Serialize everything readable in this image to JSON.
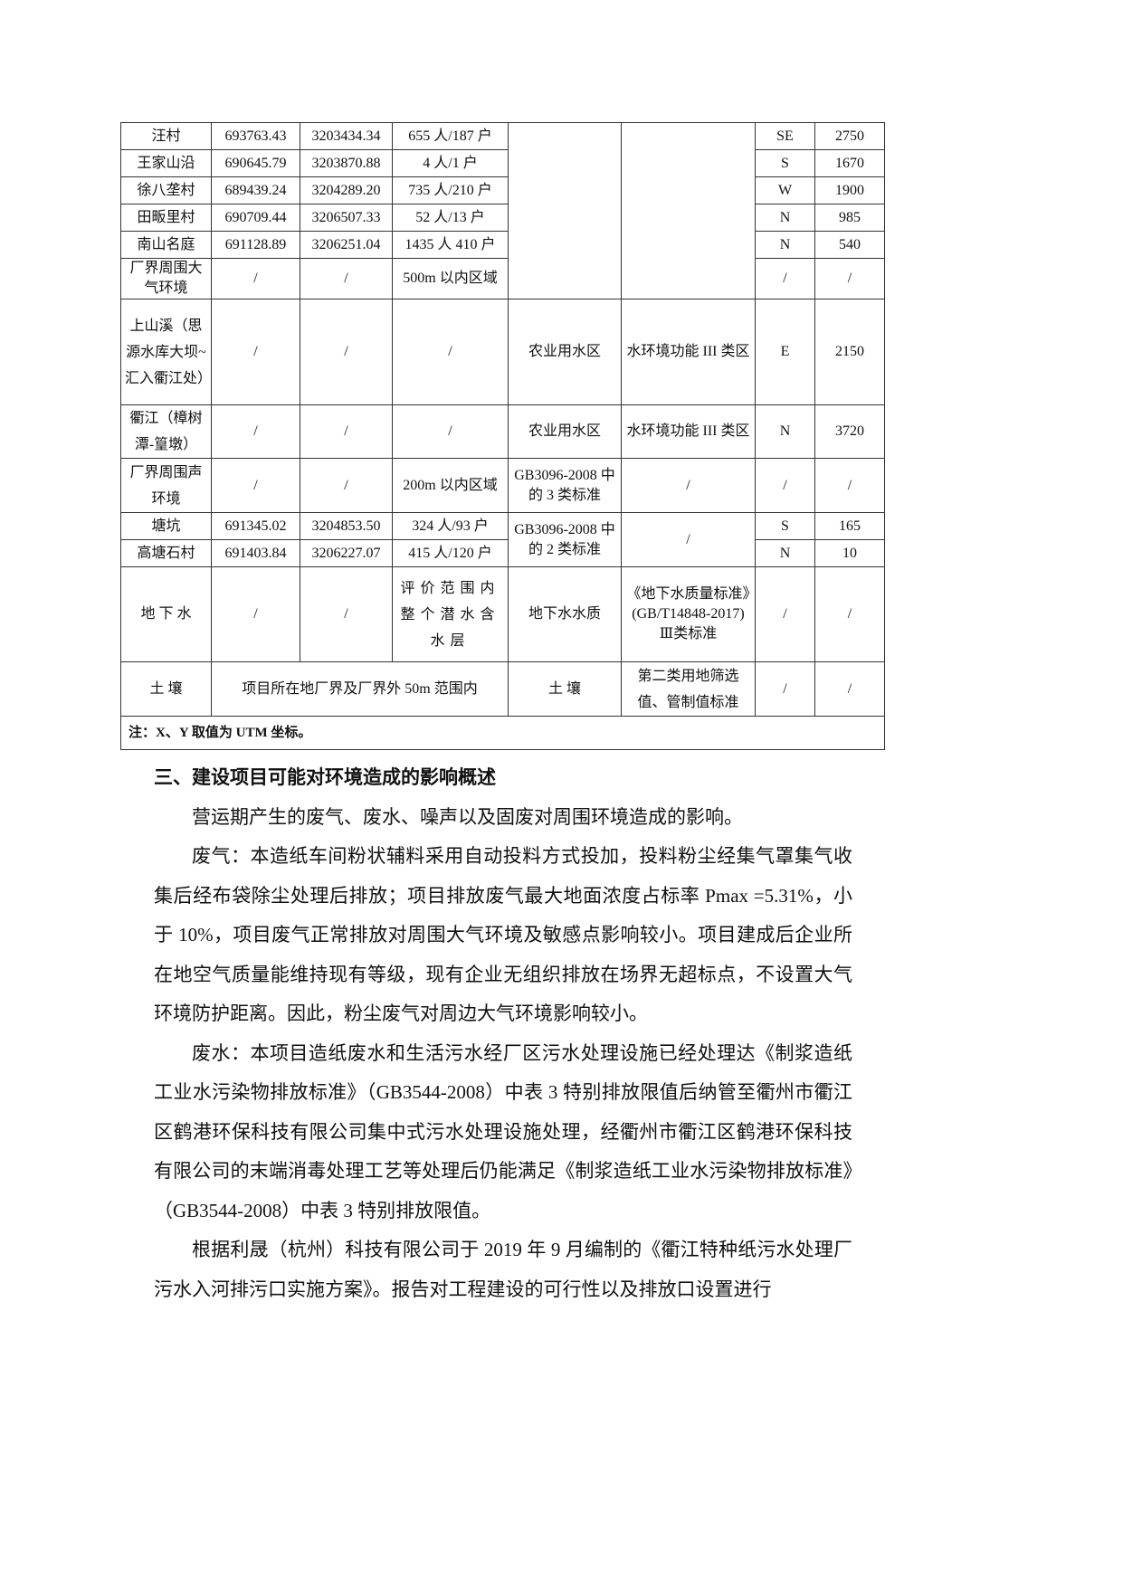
{
  "table": {
    "rows": [
      {
        "name": "汪村",
        "x": "693763.43",
        "y": "3203434.34",
        "scale": "655 人/187 户",
        "dir": "SE",
        "dist": "2750"
      },
      {
        "name": "王家山沿",
        "x": "690645.79",
        "y": "3203870.88",
        "scale": "4 人/1 户",
        "dir": "S",
        "dist": "1670"
      },
      {
        "name": "徐八垄村",
        "x": "689439.24",
        "y": "3204289.20",
        "scale": "735 人/210 户",
        "dir": "W",
        "dist": "1900"
      },
      {
        "name": "田畈里村",
        "x": "690709.44",
        "y": "3206507.33",
        "scale": "52 人/13 户",
        "dir": "N",
        "dist": "985"
      },
      {
        "name": "南山名庭",
        "x": "691128.89",
        "y": "3206251.04",
        "scale": "1435 人 410 户",
        "dir": "N",
        "dist": "540"
      },
      {
        "name": "厂界周围大气环境",
        "x": "/",
        "y": "/",
        "scale": "500m 以内区域",
        "dir": "/",
        "dist": "/"
      },
      {
        "name": "上山溪（思源水库大坝~汇入衢江处）",
        "x": "/",
        "y": "/",
        "scale": "/",
        "func": "农业用水区",
        "std": "水环境功能 III 类区",
        "dir": "E",
        "dist": "2150"
      },
      {
        "name": "衢江（樟树潭-篁墩）",
        "x": "/",
        "y": "/",
        "scale": "/",
        "func": "农业用水区",
        "std": "水环境功能 III 类区",
        "dir": "N",
        "dist": "3720"
      },
      {
        "name": "厂界周围声环境",
        "x": "/",
        "y": "/",
        "scale": "200m 以内区域",
        "func": "GB3096-2008 中的 3 类标准",
        "std": "/",
        "dir": "/",
        "dist": "/"
      },
      {
        "name": "塘坑",
        "x": "691345.02",
        "y": "3204853.50",
        "scale": "324 人/93 户",
        "func": "GB3096-2008 中的 2 类标准",
        "std": "/",
        "dir": "S",
        "dist": "165"
      },
      {
        "name": "高塘石村",
        "x": "691403.84",
        "y": "3206227.07",
        "scale": "415 人/120 户",
        "dir": "N",
        "dist": "10"
      },
      {
        "name": "地 下 水",
        "x": "/",
        "y": "/",
        "scale": "评价范围内整个潜水含水层",
        "func": "地下水水质",
        "std": "《地下水质量标准》(GB/T14848-2017)Ⅲ类标准",
        "dir": "/",
        "dist": "/"
      },
      {
        "name": "土 壤",
        "scale": "项目所在地厂界及厂界外 50m 范围内",
        "func": "土 壤",
        "std": "第二类用地筛选值、管制值标准",
        "dir": "/",
        "dist": "/"
      }
    ],
    "note": "注：X、Y 取值为 UTM 坐标。"
  },
  "section": {
    "heading": "三、建设项目可能对环境造成的影响概述",
    "paragraphs": [
      "营运期产生的废气、废水、噪声以及固废对周围环境造成的影响。",
      "废气：本造纸车间粉状辅料采用自动投料方式投加，投料粉尘经集气罩集气收集后经布袋除尘处理后排放；项目排放废气最大地面浓度占标率 Pmax =5.31%，小于 10%，项目废气正常排放对周围大气环境及敏感点影响较小。项目建成后企业所在地空气质量能维持现有等级，现有企业无组织排放在场界无超标点，不设置大气环境防护距离。因此，粉尘废气对周边大气环境影响较小。",
      "废水：本项目造纸废水和生活污水经厂区污水处理设施已经处理达《制浆造纸工业水污染物排放标准》（GB3544-2008）中表 3 特别排放限值后纳管至衢州市衢江区鹤港环保科技有限公司集中式污水处理设施处理，经衢州市衢江区鹤港环保科技有限公司的末端消毒处理工艺等处理后仍能满足《制浆造纸工业水污染物排放标准》（GB3544-2008）中表 3 特别排放限值。",
      "根据利晟（杭州）科技有限公司于 2019 年 9 月编制的《衢江特种纸污水处理厂污水入河排污口实施方案》。报告对工程建设的可行性以及排放口设置进行"
    ]
  }
}
